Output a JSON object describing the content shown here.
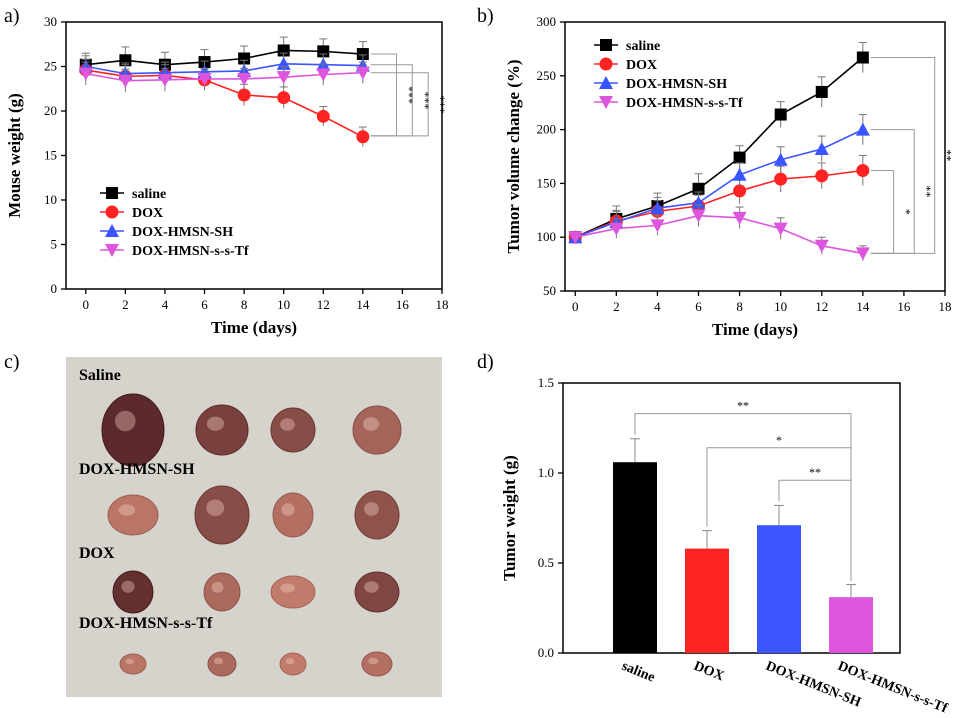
{
  "colors": {
    "saline": "#000000",
    "dox": "#ff2222",
    "sh": "#3a55ff",
    "tf": "#dd55dd",
    "bracket": "#999999",
    "photo_bg": "#d6d3cc"
  },
  "chart_data": [
    {
      "panel": "a)",
      "type": "line",
      "xlabel": "Time (days)",
      "ylabel": "Mouse weight (g)",
      "xlim": [
        -1,
        18
      ],
      "ylim": [
        0,
        30
      ],
      "xticks": [
        0,
        2,
        4,
        6,
        8,
        10,
        12,
        14,
        16,
        18
      ],
      "yticks": [
        0,
        5,
        10,
        15,
        20,
        25,
        30
      ],
      "legend_position": "lower-left",
      "x": [
        0,
        2,
        4,
        6,
        8,
        10,
        12,
        14
      ],
      "series": [
        {
          "name": "saline",
          "color_key": "saline",
          "marker": "square",
          "values": [
            25.2,
            25.7,
            25.2,
            25.5,
            25.9,
            26.8,
            26.7,
            26.4
          ],
          "errors": [
            1.3,
            1.5,
            1.4,
            1.4,
            1.4,
            1.5,
            1.4,
            1.4
          ]
        },
        {
          "name": "DOX",
          "color_key": "dox",
          "marker": "circle",
          "values": [
            24.6,
            23.9,
            24.0,
            23.5,
            21.8,
            21.5,
            19.4,
            17.1
          ],
          "errors": [
            1.2,
            1.3,
            1.2,
            1.2,
            1.2,
            1.2,
            1.1,
            1.1
          ]
        },
        {
          "name": "DOX-HMSN-SH",
          "color_key": "sh",
          "marker": "triangle-up",
          "values": [
            25.0,
            24.2,
            24.3,
            24.4,
            24.5,
            25.3,
            25.2,
            25.1
          ],
          "errors": [
            1.2,
            1.2,
            1.2,
            1.2,
            1.2,
            1.2,
            1.2,
            1.2
          ]
        },
        {
          "name": "DOX-HMSN-s-s-Tf",
          "color_key": "tf",
          "marker": "triangle-down",
          "values": [
            24.2,
            23.4,
            23.5,
            23.6,
            23.6,
            23.8,
            24.1,
            24.3
          ],
          "errors": [
            1.3,
            1.3,
            1.3,
            1.2,
            1.2,
            1.2,
            1.2,
            1.2
          ]
        }
      ],
      "significance": [
        {
          "label": "***",
          "from": 26.4,
          "to": 17.2,
          "x": 15.7
        },
        {
          "label": "***",
          "from": 25.2,
          "to": 17.2,
          "x": 16.5
        },
        {
          "label": "***",
          "from": 24.3,
          "to": 17.2,
          "x": 17.3
        }
      ]
    },
    {
      "panel": "b)",
      "type": "line",
      "xlabel": "Time (days)",
      "ylabel": "Tumor volume change (%)",
      "xlim": [
        -0.5,
        18
      ],
      "ylim": [
        50,
        300
      ],
      "xticks": [
        0,
        2,
        4,
        6,
        8,
        10,
        12,
        14,
        16,
        18
      ],
      "yticks": [
        50,
        100,
        150,
        200,
        250,
        300
      ],
      "legend_position": "top-left",
      "x": [
        0,
        2,
        4,
        6,
        8,
        10,
        12,
        14
      ],
      "series": [
        {
          "name": "saline",
          "color_key": "saline",
          "marker": "square",
          "values": [
            100,
            117,
            129,
            145,
            174,
            214,
            235,
            267
          ],
          "errors": [
            4,
            12,
            12,
            14,
            11,
            12,
            14,
            14
          ]
        },
        {
          "name": "DOX",
          "color_key": "dox",
          "marker": "circle",
          "values": [
            100,
            115,
            124,
            129,
            143,
            154,
            157,
            162
          ],
          "errors": [
            4,
            10,
            10,
            10,
            12,
            12,
            12,
            14
          ]
        },
        {
          "name": "DOX-HMSN-SH",
          "color_key": "sh",
          "marker": "triangle-up",
          "values": [
            100,
            114,
            127,
            132,
            158,
            172,
            182,
            200
          ],
          "errors": [
            4,
            10,
            10,
            10,
            11,
            12,
            12,
            14
          ]
        },
        {
          "name": "DOX-HMSN-s-s-Tf",
          "color_key": "tf",
          "marker": "triangle-down",
          "values": [
            100,
            108,
            111,
            120,
            118,
            108,
            92,
            85
          ],
          "errors": [
            4,
            9,
            9,
            10,
            10,
            10,
            8,
            7
          ]
        }
      ],
      "significance": [
        {
          "label": "*",
          "from": 162,
          "to": 85,
          "x": 15.5
        },
        {
          "label": "**",
          "from": 200,
          "to": 85,
          "x": 16.5
        },
        {
          "label": "**",
          "from": 267,
          "to": 85,
          "x": 17.5
        }
      ]
    },
    {
      "panel": "d)",
      "type": "bar",
      "ylabel": "Tumor weight (g)",
      "ylim": [
        0,
        1.5
      ],
      "yticks": [
        0.0,
        0.5,
        1.0,
        1.5
      ],
      "categories": [
        "saline",
        "DOX",
        "DOX-HMSN-SH",
        "DOX-HMSN-s-s-Tf"
      ],
      "values": [
        1.06,
        0.58,
        0.71,
        0.31
      ],
      "errors": [
        0.13,
        0.1,
        0.11,
        0.07
      ],
      "color_keys": [
        "saline",
        "dox",
        "sh",
        "tf"
      ],
      "significance": [
        {
          "label": "**",
          "a": 0,
          "b": 3,
          "y": 1.33
        },
        {
          "label": "*",
          "a": 1,
          "b": 3,
          "y": 1.14
        },
        {
          "label": "**",
          "a": 2,
          "b": 3,
          "y": 0.96
        }
      ]
    }
  ],
  "photo": {
    "panel": "c)",
    "rows": [
      {
        "label": "Saline",
        "tumors": [
          {
            "w": 62,
            "h": 72,
            "dark": 0.85
          },
          {
            "w": 52,
            "h": 50,
            "dark": 0.65
          },
          {
            "w": 44,
            "h": 44,
            "dark": 0.55
          },
          {
            "w": 48,
            "h": 48,
            "dark": 0.35
          }
        ]
      },
      {
        "label": "DOX-HMSN-SH",
        "tumors": [
          {
            "w": 50,
            "h": 40,
            "dark": 0.2
          },
          {
            "w": 54,
            "h": 58,
            "dark": 0.55
          },
          {
            "w": 40,
            "h": 44,
            "dark": 0.25
          },
          {
            "w": 44,
            "h": 48,
            "dark": 0.5
          }
        ]
      },
      {
        "label": "DOX",
        "tumors": [
          {
            "w": 40,
            "h": 42,
            "dark": 0.8
          },
          {
            "w": 36,
            "h": 38,
            "dark": 0.3
          },
          {
            "w": 44,
            "h": 32,
            "dark": 0.15
          },
          {
            "w": 44,
            "h": 40,
            "dark": 0.6
          }
        ]
      },
      {
        "label": "DOX-HMSN-s-s-Tf",
        "tumors": [
          {
            "w": 26,
            "h": 20,
            "dark": 0.2
          },
          {
            "w": 28,
            "h": 24,
            "dark": 0.3
          },
          {
            "w": 26,
            "h": 22,
            "dark": 0.15
          },
          {
            "w": 30,
            "h": 24,
            "dark": 0.25
          }
        ]
      }
    ]
  }
}
